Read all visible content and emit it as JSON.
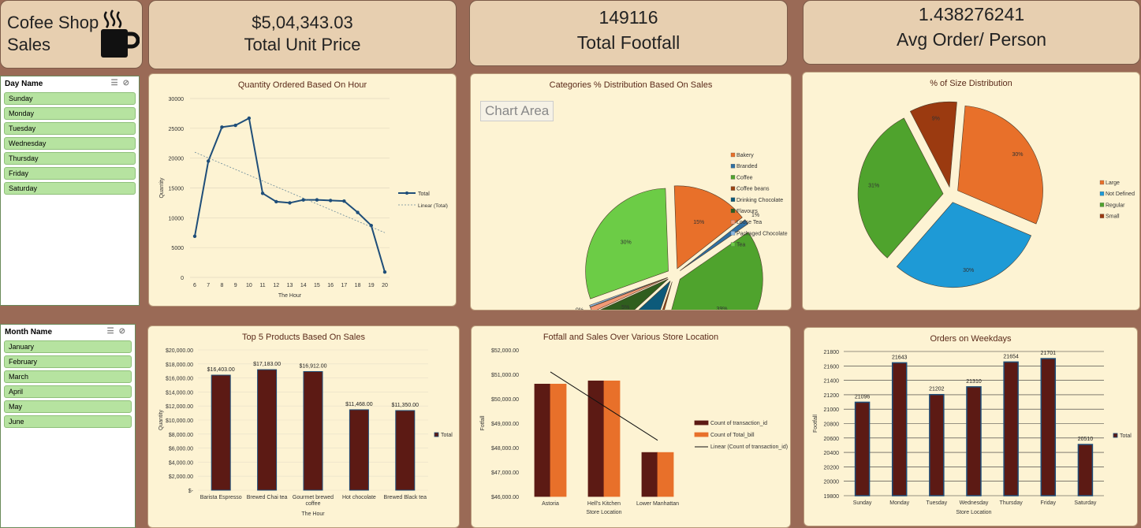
{
  "kpis": {
    "title_line1": "Cofee Shop",
    "title_line2": "Sales",
    "unit_price_value": "$5,04,343.03",
    "unit_price_label": "Total Unit Price",
    "footfall_value": "149116",
    "footfall_label": "Total Footfall",
    "avg_value": "1.438276241",
    "avg_label": "Avg Order/ Person",
    "icon": "coffee-cup-icon"
  },
  "slicers": {
    "day": {
      "title": "Day Name",
      "items": [
        "Sunday",
        "Monday",
        "Tuesday",
        "Wednesday",
        "Thursday",
        "Friday",
        "Saturday"
      ]
    },
    "month": {
      "title": "Month Name",
      "items": [
        "January",
        "February",
        "March",
        "April",
        "May",
        "June"
      ]
    }
  },
  "chart_data": [
    {
      "type": "line",
      "title": "Quantity Ordered Based On Hour",
      "xlabel": "The Hour",
      "ylabel": "Quantity",
      "x": [
        6,
        7,
        8,
        9,
        10,
        11,
        12,
        13,
        14,
        15,
        16,
        17,
        18,
        19,
        20
      ],
      "series": [
        {
          "name": "Total",
          "values": [
            6900,
            19500,
            25200,
            25500,
            26700,
            14100,
            12700,
            12500,
            13000,
            13000,
            12900,
            12800,
            10900,
            8700,
            900
          ]
        }
      ],
      "trendline": {
        "name": "Linear (Total)",
        "start": 21000,
        "end": 7500
      },
      "ylim": [
        0,
        30000
      ],
      "yticks": [
        0,
        5000,
        10000,
        15000,
        20000,
        25000,
        30000
      ],
      "legend": "right",
      "colors": {
        "line": "#1f4e79"
      }
    },
    {
      "type": "pie",
      "title": "Categories % Distribution Based On Sales",
      "tooltip": "Chart Area",
      "legend": "right",
      "slices": [
        {
          "name": "Bakery",
          "value": 15,
          "label": "15%",
          "color": "#e8702a"
        },
        {
          "name": "Branded",
          "value": 1,
          "label": "1%",
          "color": "#2e6fa3"
        },
        {
          "name": "Coffee",
          "value": 39,
          "label": "39%",
          "color": "#4fa32d"
        },
        {
          "name": "Coffee beans",
          "value": 1,
          "label": "1%",
          "color": "#9b4413"
        },
        {
          "name": "Drinking Chocolate",
          "value": 8,
          "label": "8%",
          "color": "#0d5a7a"
        },
        {
          "name": "Flavours",
          "value": 5,
          "label": "5%",
          "color": "#2f5e1e"
        },
        {
          "name": "Loose Tea",
          "value": 1,
          "label": "1%",
          "color": "#f29a76"
        },
        {
          "name": "Packaged Chocolate",
          "value": 0,
          "label": "0%",
          "color": "#8bb8e0"
        },
        {
          "name": "Tea",
          "value": 30,
          "label": "30%",
          "color": "#6ccc46"
        }
      ]
    },
    {
      "type": "pie",
      "title": "% of Size Distribution",
      "legend": "right",
      "slices": [
        {
          "name": "Large",
          "value": 30,
          "label": "30%",
          "color": "#e8702a"
        },
        {
          "name": "Not Defined",
          "value": 30,
          "label": "30%",
          "color": "#1e9ad6"
        },
        {
          "name": "Regular",
          "value": 31,
          "label": "31%",
          "color": "#4fa32d"
        },
        {
          "name": "Small",
          "value": 9,
          "label": "9%",
          "color": "#9b3a10"
        }
      ]
    },
    {
      "type": "bar",
      "title": "Top 5 Products Based On Sales",
      "xlabel": "The Hour",
      "ylabel": "Quantity",
      "categories": [
        "Barista Espresso",
        "Brewed Chai tea",
        "Gourmet brewed coffee",
        "Hot chocolate",
        "Brewed Black tea"
      ],
      "series": [
        {
          "name": "Total",
          "values": [
            16403,
            17183,
            16912,
            11468,
            11350
          ]
        }
      ],
      "value_labels": [
        "$16,403.00",
        "$17,183.00",
        "$16,912.00",
        "$11,468.00",
        "$11,350.00"
      ],
      "ylim": [
        0,
        20000
      ],
      "yticks": [
        "$-",
        "$2,000.00",
        "$4,000.00",
        "$6,000.00",
        "$8,000.00",
        "$10,000.00",
        "$12,000.00",
        "$14,000.00",
        "$16,000.00",
        "$18,000.00",
        "$20,000.00"
      ],
      "legend": "right",
      "colors": {
        "bar": "#5c1a14",
        "edge": "#1f4e79"
      }
    },
    {
      "type": "bar",
      "title": "Fotfall and Sales Over Various Store Location",
      "xlabel": "Store Location",
      "ylabel": "Fotfall",
      "categories": [
        "Astoria",
        "Hell's Kitchen",
        "Lower Manhattan"
      ],
      "series": [
        {
          "name": "Count of transaction_id",
          "values": [
            50600,
            50730,
            47800
          ],
          "color": "#5c1a14"
        },
        {
          "name": "Count of Total_bill",
          "values": [
            50600,
            50730,
            47800
          ],
          "color": "#e8702a"
        }
      ],
      "trendline": {
        "name": "Linear (Count of transaction_id)",
        "start": 51100,
        "end": 48300
      },
      "ylim": [
        46000,
        52000
      ],
      "yticks": [
        "$46,000.00",
        "$47,000.00",
        "$48,000.00",
        "$49,000.00",
        "$50,000.00",
        "$51,000.00",
        "$52,000.00"
      ],
      "legend": "right"
    },
    {
      "type": "bar",
      "title": "Orders on Weekdays",
      "xlabel": "Store Location",
      "ylabel": "Footfall",
      "categories": [
        "Sunday",
        "Monday",
        "Tuesday",
        "Wednesday",
        "Thursday",
        "Friday",
        "Saturday"
      ],
      "series": [
        {
          "name": "Total",
          "values": [
            21096,
            21643,
            21202,
            21310,
            21654,
            21701,
            20510
          ]
        }
      ],
      "value_labels": [
        "21096",
        "21643",
        "21202",
        "21310",
        "21654",
        "21701",
        "20510"
      ],
      "ylim": [
        19800,
        21800
      ],
      "yticks": [
        "19800",
        "20000",
        "20200",
        "20400",
        "20600",
        "20800",
        "21000",
        "21200",
        "21400",
        "21600",
        "21800"
      ],
      "legend": "right",
      "colors": {
        "bar": "#5c1a14",
        "edge": "#1f4e79"
      }
    }
  ]
}
